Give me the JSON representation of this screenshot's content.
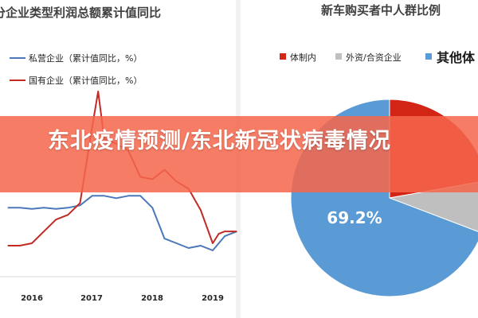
{
  "banner": {
    "title": "东北疫情预测/东北新冠状病毒情况"
  },
  "chart_data": [
    {
      "type": "line",
      "title": "分企业类型利润总额累计值同比",
      "x_tick_labels": [
        "2016",
        "2017",
        "2018",
        "2019"
      ],
      "grid": false,
      "legend_position": "top-left",
      "series": [
        {
          "name": "私营企业（累计值同比，%）",
          "color": "#4a78b8",
          "x": [
            2015.6,
            2015.8,
            2016.0,
            2016.2,
            2016.4,
            2016.6,
            2016.8,
            2017.0,
            2017.2,
            2017.4,
            2017.6,
            2017.8,
            2018.0,
            2018.2,
            2018.4,
            2018.6,
            2018.8,
            2019.0,
            2019.2,
            2019.4
          ],
          "values": [
            6,
            6,
            5.5,
            6,
            5.5,
            6,
            7,
            11,
            11,
            10,
            11,
            11,
            6,
            -7,
            -9,
            -11,
            -10,
            -12,
            -6,
            -4
          ]
        },
        {
          "name": "国有企业（累计值同比，%）",
          "color": "#c22a24",
          "x": [
            2015.6,
            2015.8,
            2016.0,
            2016.2,
            2016.4,
            2016.6,
            2016.8,
            2017.0,
            2017.1,
            2017.2,
            2017.4,
            2017.6,
            2017.8,
            2018.0,
            2018.2,
            2018.4,
            2018.6,
            2018.8,
            2019.0,
            2019.1,
            2019.2,
            2019.4
          ],
          "values": [
            -10,
            -10,
            -9,
            -4,
            1,
            3,
            8,
            40,
            55,
            35,
            33,
            30,
            19,
            18,
            22,
            17,
            14,
            5,
            -9,
            -5,
            -4,
            -4
          ]
        }
      ]
    },
    {
      "type": "pie",
      "title": "新车购买者中人群比例",
      "legend_position": "top",
      "slices": [
        {
          "label": "体制内",
          "color": "#d32516"
        },
        {
          "label": "外资/合资企业",
          "color": "#bfbfbf"
        },
        {
          "label": "其他体",
          "value": 69.2,
          "color": "#5b9bd5"
        }
      ],
      "data_labels": [
        "69.2%"
      ]
    }
  ]
}
